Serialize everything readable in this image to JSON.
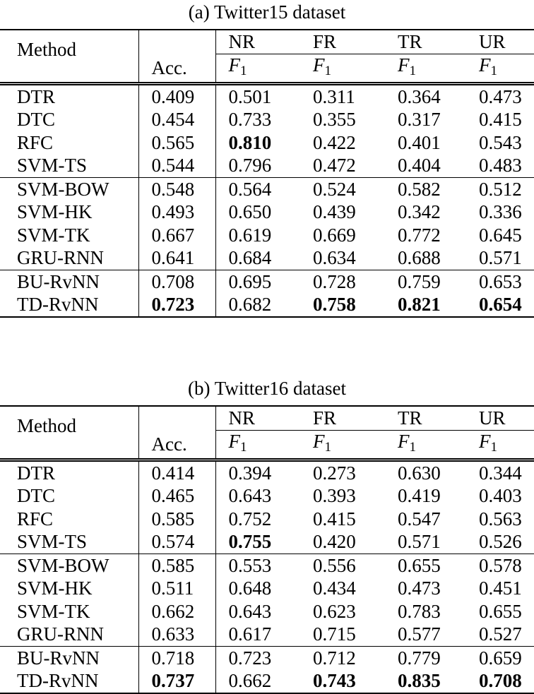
{
  "tables": [
    {
      "caption": "(a) Twitter15 dataset",
      "header": {
        "method": "Method",
        "acc": "Acc.",
        "classes": [
          "NR",
          "FR",
          "TR",
          "UR"
        ],
        "metric": "F",
        "metric_sub": "1"
      },
      "groups": [
        [
          {
            "method": "DTR",
            "values": [
              "0.409",
              "0.501",
              "0.311",
              "0.364",
              "0.473"
            ],
            "bold": []
          },
          {
            "method": "DTC",
            "values": [
              "0.454",
              "0.733",
              "0.355",
              "0.317",
              "0.415"
            ],
            "bold": []
          },
          {
            "method": "RFC",
            "values": [
              "0.565",
              "0.810",
              "0.422",
              "0.401",
              "0.543"
            ],
            "bold": [
              1
            ]
          },
          {
            "method": "SVM-TS",
            "values": [
              "0.544",
              "0.796",
              "0.472",
              "0.404",
              "0.483"
            ],
            "bold": []
          }
        ],
        [
          {
            "method": "SVM-BOW",
            "values": [
              "0.548",
              "0.564",
              "0.524",
              "0.582",
              "0.512"
            ],
            "bold": []
          },
          {
            "method": "SVM-HK",
            "values": [
              "0.493",
              "0.650",
              "0.439",
              "0.342",
              "0.336"
            ],
            "bold": []
          },
          {
            "method": "SVM-TK",
            "values": [
              "0.667",
              "0.619",
              "0.669",
              "0.772",
              "0.645"
            ],
            "bold": []
          },
          {
            "method": "GRU-RNN",
            "values": [
              "0.641",
              "0.684",
              "0.634",
              "0.688",
              "0.571"
            ],
            "bold": []
          }
        ],
        [
          {
            "method": "BU-RvNN",
            "values": [
              "0.708",
              "0.695",
              "0.728",
              "0.759",
              "0.653"
            ],
            "bold": []
          },
          {
            "method": "TD-RvNN",
            "values": [
              "0.723",
              "0.682",
              "0.758",
              "0.821",
              "0.654"
            ],
            "bold": [
              0,
              2,
              3,
              4
            ]
          }
        ]
      ]
    },
    {
      "caption": "(b) Twitter16 dataset",
      "header": {
        "method": "Method",
        "acc": "Acc.",
        "classes": [
          "NR",
          "FR",
          "TR",
          "UR"
        ],
        "metric": "F",
        "metric_sub": "1"
      },
      "groups": [
        [
          {
            "method": "DTR",
            "values": [
              "0.414",
              "0.394",
              "0.273",
              "0.630",
              "0.344"
            ],
            "bold": []
          },
          {
            "method": "DTC",
            "values": [
              "0.465",
              "0.643",
              "0.393",
              "0.419",
              "0.403"
            ],
            "bold": []
          },
          {
            "method": "RFC",
            "values": [
              "0.585",
              "0.752",
              "0.415",
              "0.547",
              "0.563"
            ],
            "bold": []
          },
          {
            "method": "SVM-TS",
            "values": [
              "0.574",
              "0.755",
              "0.420",
              "0.571",
              "0.526"
            ],
            "bold": [
              1
            ]
          }
        ],
        [
          {
            "method": "SVM-BOW",
            "values": [
              "0.585",
              "0.553",
              "0.556",
              "0.655",
              "0.578"
            ],
            "bold": []
          },
          {
            "method": "SVM-HK",
            "values": [
              "0.511",
              "0.648",
              "0.434",
              "0.473",
              "0.451"
            ],
            "bold": []
          },
          {
            "method": "SVM-TK",
            "values": [
              "0.662",
              "0.643",
              "0.623",
              "0.783",
              "0.655"
            ],
            "bold": []
          },
          {
            "method": "GRU-RNN",
            "values": [
              "0.633",
              "0.617",
              "0.715",
              "0.577",
              "0.527"
            ],
            "bold": []
          }
        ],
        [
          {
            "method": "BU-RvNN",
            "values": [
              "0.718",
              "0.723",
              "0.712",
              "0.779",
              "0.659"
            ],
            "bold": []
          },
          {
            "method": "TD-RvNN",
            "values": [
              "0.737",
              "0.662",
              "0.743",
              "0.835",
              "0.708"
            ],
            "bold": [
              0,
              2,
              3,
              4
            ]
          }
        ]
      ]
    }
  ]
}
